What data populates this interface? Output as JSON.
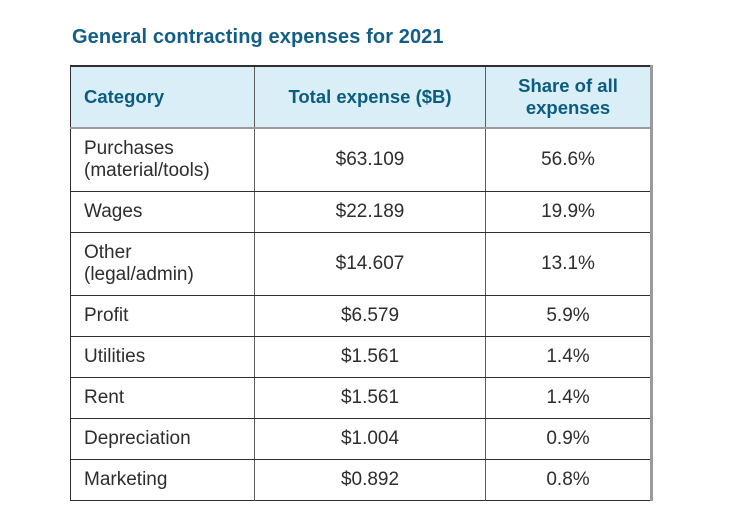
{
  "title": "General contracting expenses for 2021",
  "colors": {
    "title_text": "#125e87",
    "header_text": "#0b5d80",
    "header_background": "#d9eef7",
    "body_text": "#2d2d2d",
    "row_border": "#2f2f2f",
    "gray_border": "#9a9a9a"
  },
  "chart_data": {
    "type": "table",
    "title": "General contracting expenses for 2021",
    "columns": [
      "Category",
      "Total expense ($B)",
      "Share of all expenses"
    ],
    "rows": [
      {
        "category": "Purchases\n(material/tools)",
        "total_expense": "$63.109",
        "share": "56.6%"
      },
      {
        "category": "Wages",
        "total_expense": "$22.189",
        "share": "19.9%"
      },
      {
        "category": "Other\n(legal/admin)",
        "total_expense": "$14.607",
        "share": "13.1%"
      },
      {
        "category": "Profit",
        "total_expense": "$6.579",
        "share": "5.9%"
      },
      {
        "category": "Utilities",
        "total_expense": "$1.561",
        "share": "1.4%"
      },
      {
        "category": "Rent",
        "total_expense": "$1.561",
        "share": "1.4%"
      },
      {
        "category": "Depreciation",
        "total_expense": "$1.004",
        "share": "0.9%"
      },
      {
        "category": "Marketing",
        "total_expense": "$0.892",
        "share": "0.8%"
      }
    ],
    "values_numeric": {
      "total_expense_billions": [
        63.109,
        22.189,
        14.607,
        6.579,
        1.561,
        1.561,
        1.004,
        0.892
      ],
      "share_percent": [
        56.6,
        19.9,
        13.1,
        5.9,
        1.4,
        1.4,
        0.9,
        0.8
      ]
    }
  }
}
